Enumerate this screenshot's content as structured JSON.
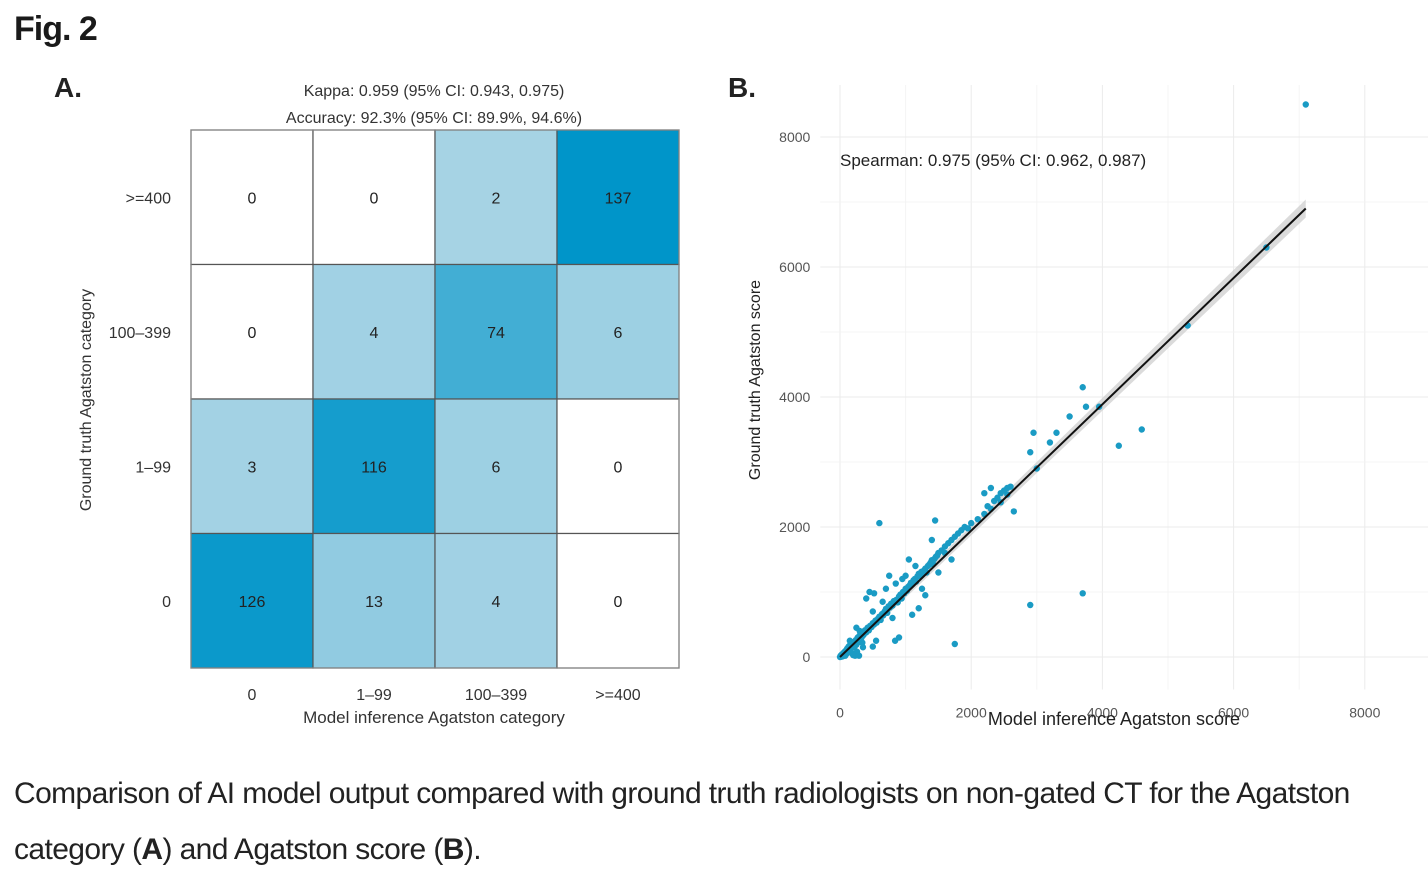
{
  "figure": {
    "title": "Fig. 2",
    "caption_parts": [
      {
        "text": "Comparison of AI model output compared with ground truth radiologists on non-gated CT for the Agatston category (",
        "bold": false
      },
      {
        "text": "A",
        "bold": true
      },
      {
        "text": ") and Agatston score (",
        "bold": false
      },
      {
        "text": "B",
        "bold": true
      },
      {
        "text": ").",
        "bold": false
      }
    ]
  },
  "chart_data": [
    {
      "panel": "A.",
      "type": "heatmap",
      "title_lines": [
        "Kappa: 0.959 (95% CI: 0.943, 0.975)",
        "Accuracy: 92.3% (95% CI: 89.9%, 94.6%)"
      ],
      "xlabel": "Model inference Agatston category",
      "ylabel": "Ground truth Agatston category",
      "x_categories": [
        "0",
        "1–99",
        "100–399",
        ">=400"
      ],
      "y_categories": [
        "0",
        "1–99",
        "100–399",
        ">=400"
      ],
      "matrix_rows_top_to_bottom": [
        {
          "y": ">=400",
          "values": [
            0,
            0,
            2,
            137
          ]
        },
        {
          "y": "100–399",
          "values": [
            0,
            4,
            74,
            6
          ]
        },
        {
          "y": "1–99",
          "values": [
            3,
            116,
            6,
            0
          ]
        },
        {
          "y": "0",
          "values": [
            126,
            13,
            4,
            0
          ]
        }
      ],
      "colors": {
        "zero": "#ffffff",
        "low": "#a9d4e5",
        "high": "#0095c9",
        "border": "#555555"
      }
    },
    {
      "panel": "B.",
      "type": "scatter",
      "annotation": "Spearman: 0.975 (95% CI: 0.962, 0.987)",
      "xlabel": "Model inference Agatston score",
      "ylabel": "Ground truth Agatston score",
      "xlim": [
        -300,
        9000
      ],
      "ylim": [
        -500,
        8800
      ],
      "xticks": [
        0,
        2000,
        4000,
        6000,
        8000
      ],
      "yticks": [
        0,
        2000,
        4000,
        6000,
        8000
      ],
      "grid": true,
      "point_color": "#1a9bc4",
      "fit_line": {
        "x": [
          0,
          7100
        ],
        "y": [
          0,
          6900
        ],
        "color": "#111111",
        "band_color": "#cccccc"
      },
      "points": [
        [
          0,
          0
        ],
        [
          10,
          20
        ],
        [
          20,
          5
        ],
        [
          30,
          40
        ],
        [
          40,
          10
        ],
        [
          50,
          60
        ],
        [
          60,
          30
        ],
        [
          70,
          80
        ],
        [
          80,
          20
        ],
        [
          90,
          100
        ],
        [
          100,
          50
        ],
        [
          110,
          130
        ],
        [
          120,
          70
        ],
        [
          130,
          160
        ],
        [
          140,
          90
        ],
        [
          150,
          180
        ],
        [
          160,
          110
        ],
        [
          170,
          140
        ],
        [
          180,
          60
        ],
        [
          190,
          200
        ],
        [
          200,
          30
        ],
        [
          210,
          230
        ],
        [
          220,
          150
        ],
        [
          230,
          20
        ],
        [
          240,
          260
        ],
        [
          250,
          190
        ],
        [
          260,
          80
        ],
        [
          270,
          300
        ],
        [
          280,
          230
        ],
        [
          290,
          20
        ],
        [
          300,
          330
        ],
        [
          310,
          270
        ],
        [
          320,
          360
        ],
        [
          330,
          300
        ],
        [
          340,
          220
        ],
        [
          350,
          380
        ],
        [
          360,
          340
        ],
        [
          380,
          410
        ],
        [
          400,
          380
        ],
        [
          420,
          450
        ],
        [
          440,
          410
        ],
        [
          460,
          480
        ],
        [
          480,
          460
        ],
        [
          500,
          160
        ],
        [
          500,
          520
        ],
        [
          520,
          500
        ],
        [
          540,
          560
        ],
        [
          560,
          530
        ],
        [
          580,
          590
        ],
        [
          600,
          620
        ],
        [
          620,
          570
        ],
        [
          640,
          660
        ],
        [
          660,
          640
        ],
        [
          680,
          700
        ],
        [
          700,
          740
        ],
        [
          720,
          680
        ],
        [
          740,
          780
        ],
        [
          760,
          760
        ],
        [
          780,
          820
        ],
        [
          800,
          790
        ],
        [
          820,
          860
        ],
        [
          840,
          250
        ],
        [
          860,
          880
        ],
        [
          880,
          840
        ],
        [
          900,
          930
        ],
        [
          920,
          960
        ],
        [
          940,
          900
        ],
        [
          960,
          1000
        ],
        [
          980,
          980
        ],
        [
          1000,
          1050
        ],
        [
          1020,
          1020
        ],
        [
          1040,
          1080
        ],
        [
          1060,
          1100
        ],
        [
          1080,
          1140
        ],
        [
          1100,
          1120
        ],
        [
          1120,
          1180
        ],
        [
          1140,
          1200
        ],
        [
          1160,
          1160
        ],
        [
          1180,
          1240
        ],
        [
          1200,
          1280
        ],
        [
          1220,
          1250
        ],
        [
          1240,
          1310
        ],
        [
          1260,
          1290
        ],
        [
          1280,
          1330
        ],
        [
          1300,
          1360
        ],
        [
          1320,
          1300
        ],
        [
          1340,
          1400
        ],
        [
          1360,
          1420
        ],
        [
          1380,
          1450
        ],
        [
          1400,
          1490
        ],
        [
          1420,
          1430
        ],
        [
          1440,
          1510
        ],
        [
          1460,
          1540
        ],
        [
          1480,
          1560
        ],
        [
          1500,
          1600
        ],
        [
          1550,
          1640
        ],
        [
          1600,
          1700
        ],
        [
          1650,
          1750
        ],
        [
          1700,
          1800
        ],
        [
          1750,
          1850
        ],
        [
          1800,
          1900
        ],
        [
          1850,
          1950
        ],
        [
          1900,
          2000
        ],
        [
          1950,
          1980
        ],
        [
          2000,
          2060
        ],
        [
          2100,
          2120
        ],
        [
          2200,
          2200
        ],
        [
          2250,
          2320
        ],
        [
          2300,
          2280
        ],
        [
          2350,
          2400
        ],
        [
          2400,
          2450
        ],
        [
          2450,
          2380
        ],
        [
          2500,
          2560
        ],
        [
          2550,
          2500
        ],
        [
          2600,
          2620
        ],
        [
          2650,
          2240
        ],
        [
          2200,
          2520
        ],
        [
          2300,
          2600
        ],
        [
          2450,
          2520
        ],
        [
          2550,
          2600
        ],
        [
          300,
          400
        ],
        [
          400,
          900
        ],
        [
          450,
          1000
        ],
        [
          520,
          980
        ],
        [
          600,
          2060
        ],
        [
          700,
          1050
        ],
        [
          750,
          1250
        ],
        [
          850,
          1130
        ],
        [
          1000,
          1250
        ],
        [
          1050,
          1500
        ],
        [
          1150,
          1400
        ],
        [
          1200,
          750
        ],
        [
          1300,
          950
        ],
        [
          1400,
          1800
        ],
        [
          1450,
          2100
        ],
        [
          1500,
          1300
        ],
        [
          1600,
          1600
        ],
        [
          1700,
          1500
        ],
        [
          1750,
          200
        ],
        [
          1100,
          650
        ],
        [
          900,
          300
        ],
        [
          550,
          250
        ],
        [
          350,
          150
        ],
        [
          250,
          450
        ],
        [
          150,
          250
        ],
        [
          500,
          700
        ],
        [
          650,
          850
        ],
        [
          800,
          600
        ],
        [
          950,
          1200
        ],
        [
          1250,
          1050
        ],
        [
          2900,
          800
        ],
        [
          3700,
          980
        ],
        [
          2900,
          3150
        ],
        [
          2950,
          3450
        ],
        [
          3200,
          3300
        ],
        [
          3300,
          3450
        ],
        [
          3500,
          3700
        ],
        [
          3700,
          4150
        ],
        [
          3750,
          3850
        ],
        [
          3950,
          3850
        ],
        [
          4250,
          3250
        ],
        [
          4600,
          3500
        ],
        [
          3000,
          2900
        ],
        [
          5300,
          5100
        ],
        [
          6500,
          6300
        ],
        [
          7100,
          8500
        ]
      ]
    }
  ]
}
